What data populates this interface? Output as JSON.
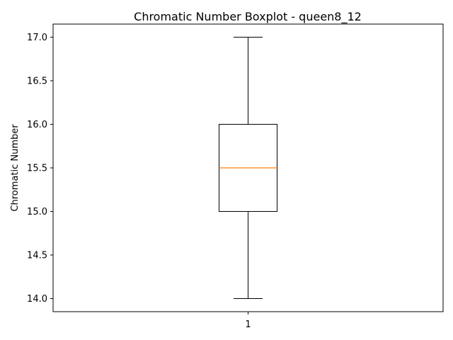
{
  "chart_data": {
    "type": "boxplot",
    "title": "Chromatic Number Boxplot - queen8_12",
    "xlabel": "",
    "ylabel": "Chromatic Number",
    "categories": [
      "1"
    ],
    "boxes": [
      {
        "category": "1",
        "whisker_low": 14.0,
        "q1": 15.0,
        "median": 15.5,
        "q3": 16.0,
        "whisker_high": 17.0
      }
    ],
    "ylim": [
      13.85,
      17.15
    ],
    "yticks": [
      "14.0",
      "14.5",
      "15.0",
      "15.5",
      "16.0",
      "16.5",
      "17.0"
    ],
    "grid": false,
    "colors": {
      "box": "#000000",
      "median": "#ff7f0e",
      "whisker": "#000000"
    }
  }
}
